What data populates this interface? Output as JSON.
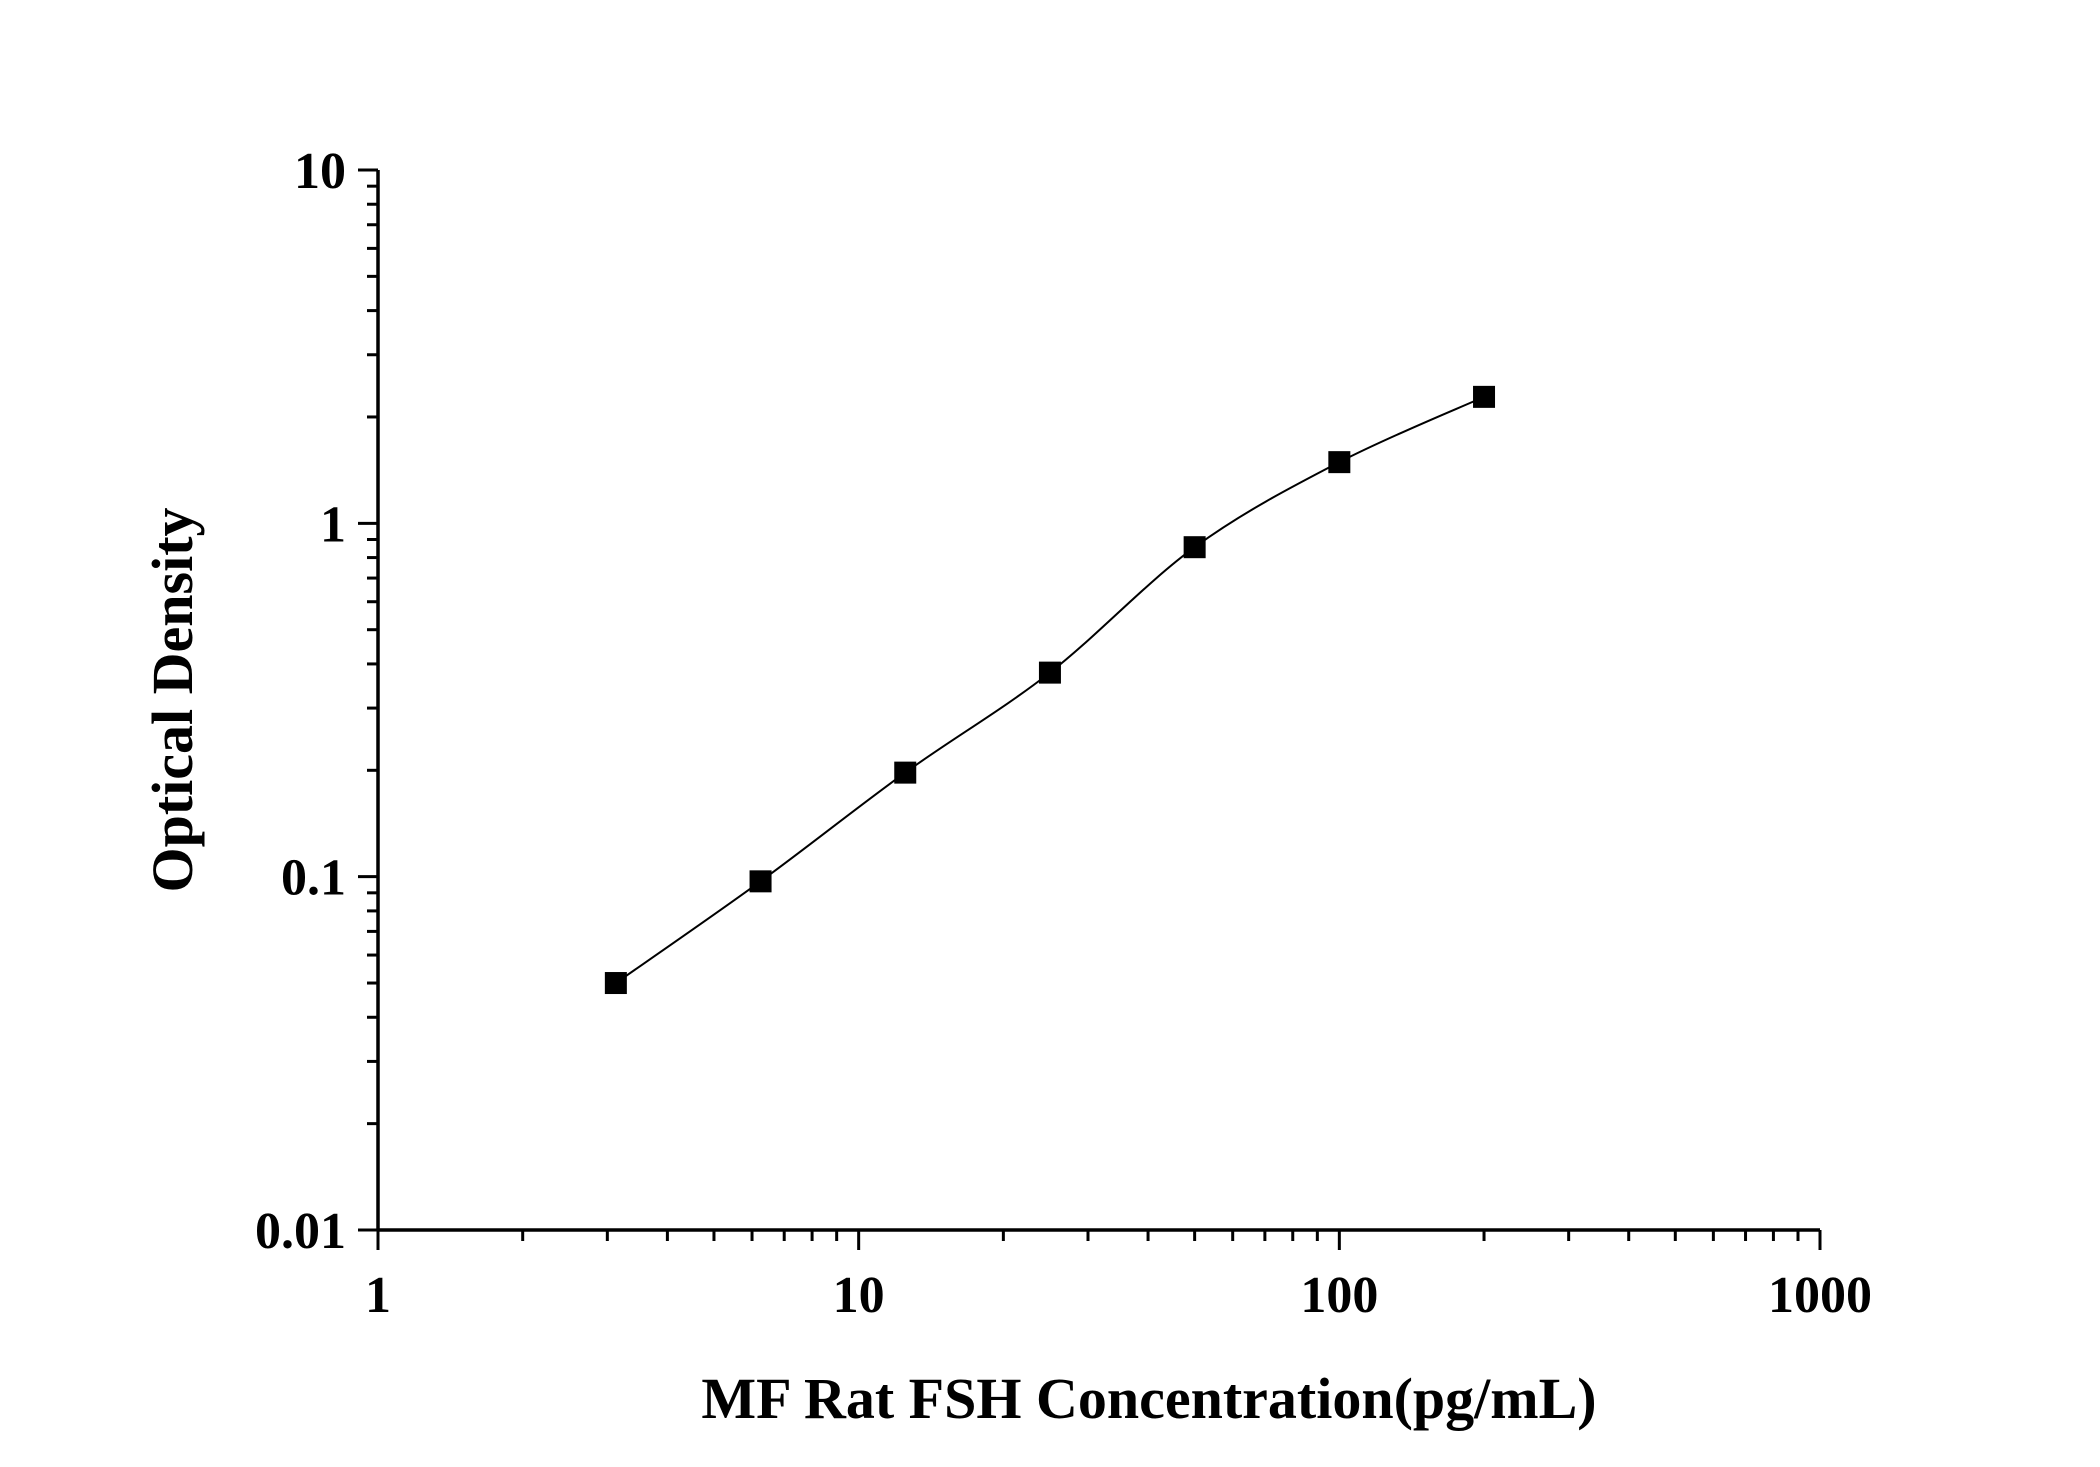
{
  "chart_data": {
    "type": "scatter",
    "xlabel": "MF Rat FSH Concentration(pg/mL)",
    "ylabel": "Optical Density",
    "x_scale": "log",
    "y_scale": "log",
    "xlim": [
      1,
      1000
    ],
    "ylim": [
      0.01,
      10
    ],
    "x_tick_labels": [
      "1",
      "10",
      "100",
      "1000"
    ],
    "y_tick_labels": [
      "0.01",
      "0.1",
      "1",
      "10"
    ],
    "grid": false,
    "legend": false,
    "series": [
      {
        "marker": "square",
        "color": "#000000",
        "x": [
          3.125,
          6.25,
          12.5,
          25,
          50,
          100,
          200
        ],
        "y": [
          0.05,
          0.097,
          0.197,
          0.378,
          0.856,
          1.49,
          2.28
        ]
      }
    ],
    "fit_line": true
  }
}
